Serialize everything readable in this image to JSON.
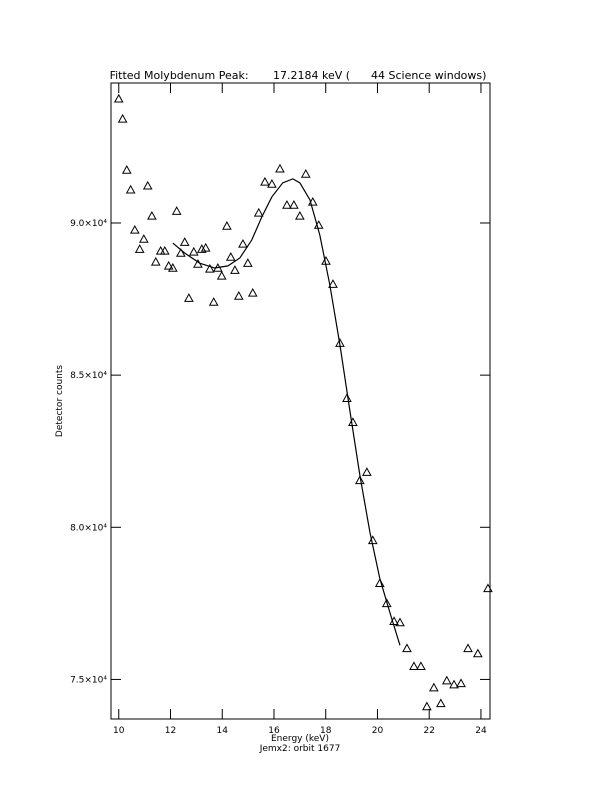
{
  "chart_data": {
    "type": "scatter",
    "title": "Fitted Molybdenum Peak:       17.2184 keV (      44 Science windows)",
    "xlabel": "Energy (keV)",
    "subtitle": "Jemx2: orbit 1677",
    "ylabel": "Detector counts",
    "xlim": [
      9.7,
      24.35
    ],
    "ylim": [
      73700,
      94600
    ],
    "xticks": [
      10,
      12,
      14,
      16,
      18,
      20,
      22,
      24
    ],
    "yticks": [
      {
        "value": 75000,
        "label": "7.5×10⁴"
      },
      {
        "value": 80000,
        "label": "8.0×10⁴"
      },
      {
        "value": 85000,
        "label": "8.5×10⁴"
      },
      {
        "value": 90000,
        "label": "9.0×10⁴"
      }
    ],
    "color": "#000000",
    "series": [
      {
        "type": "scatter",
        "marker": "triangle",
        "x": [
          10.0,
          10.15,
          10.31,
          10.46,
          10.62,
          10.81,
          10.97,
          11.12,
          11.28,
          11.43,
          11.62,
          11.78,
          11.93,
          12.09,
          12.24,
          12.4,
          12.55,
          12.71,
          12.9,
          13.06,
          13.21,
          13.36,
          13.52,
          13.67,
          13.83,
          13.98,
          14.18,
          14.33,
          14.49,
          14.64,
          14.8,
          14.99,
          15.18,
          15.41,
          15.65,
          15.92,
          16.23,
          16.5,
          16.77,
          17.0,
          17.23,
          17.5,
          17.73,
          18.01,
          18.28,
          18.55,
          18.82,
          19.05,
          19.32,
          19.59,
          19.82,
          20.09,
          20.36,
          20.64,
          20.87,
          21.14,
          21.41,
          21.68,
          21.91,
          22.18,
          22.45,
          22.68,
          22.96,
          23.23,
          23.5,
          23.88,
          24.27
        ],
        "values": [
          94080,
          93420,
          91740,
          91090,
          89770,
          89140,
          89470,
          91220,
          90230,
          88720,
          89080,
          89080,
          88590,
          88520,
          90390,
          89010,
          89370,
          87530,
          89050,
          88650,
          89140,
          89180,
          88490,
          87400,
          88520,
          88260,
          89900,
          88880,
          88450,
          87600,
          89310,
          88680,
          87700,
          90330,
          91350,
          91280,
          91780,
          90590,
          90590,
          90230,
          91610,
          90690,
          89930,
          88750,
          87990,
          86050,
          84240,
          83450,
          81540,
          81810,
          79570,
          78160,
          77500,
          76910,
          76870,
          76020,
          75430,
          75430,
          74110,
          74730,
          74210,
          74960,
          74830,
          74870,
          76020,
          75850,
          77990
        ]
      },
      {
        "type": "line",
        "x": [
          12.09,
          12.55,
          13.13,
          13.71,
          14.22,
          14.68,
          15.14,
          15.53,
          15.92,
          16.34,
          16.73,
          17.0,
          17.39,
          17.77,
          18.16,
          18.55,
          18.93,
          19.32,
          19.71,
          20.09,
          20.48,
          20.87
        ],
        "values": [
          89340,
          89010,
          88680,
          88520,
          88590,
          88850,
          89440,
          90200,
          90860,
          91320,
          91450,
          91320,
          90760,
          89610,
          87960,
          85990,
          83850,
          81710,
          79830,
          78320,
          77200,
          76120
        ]
      }
    ]
  }
}
